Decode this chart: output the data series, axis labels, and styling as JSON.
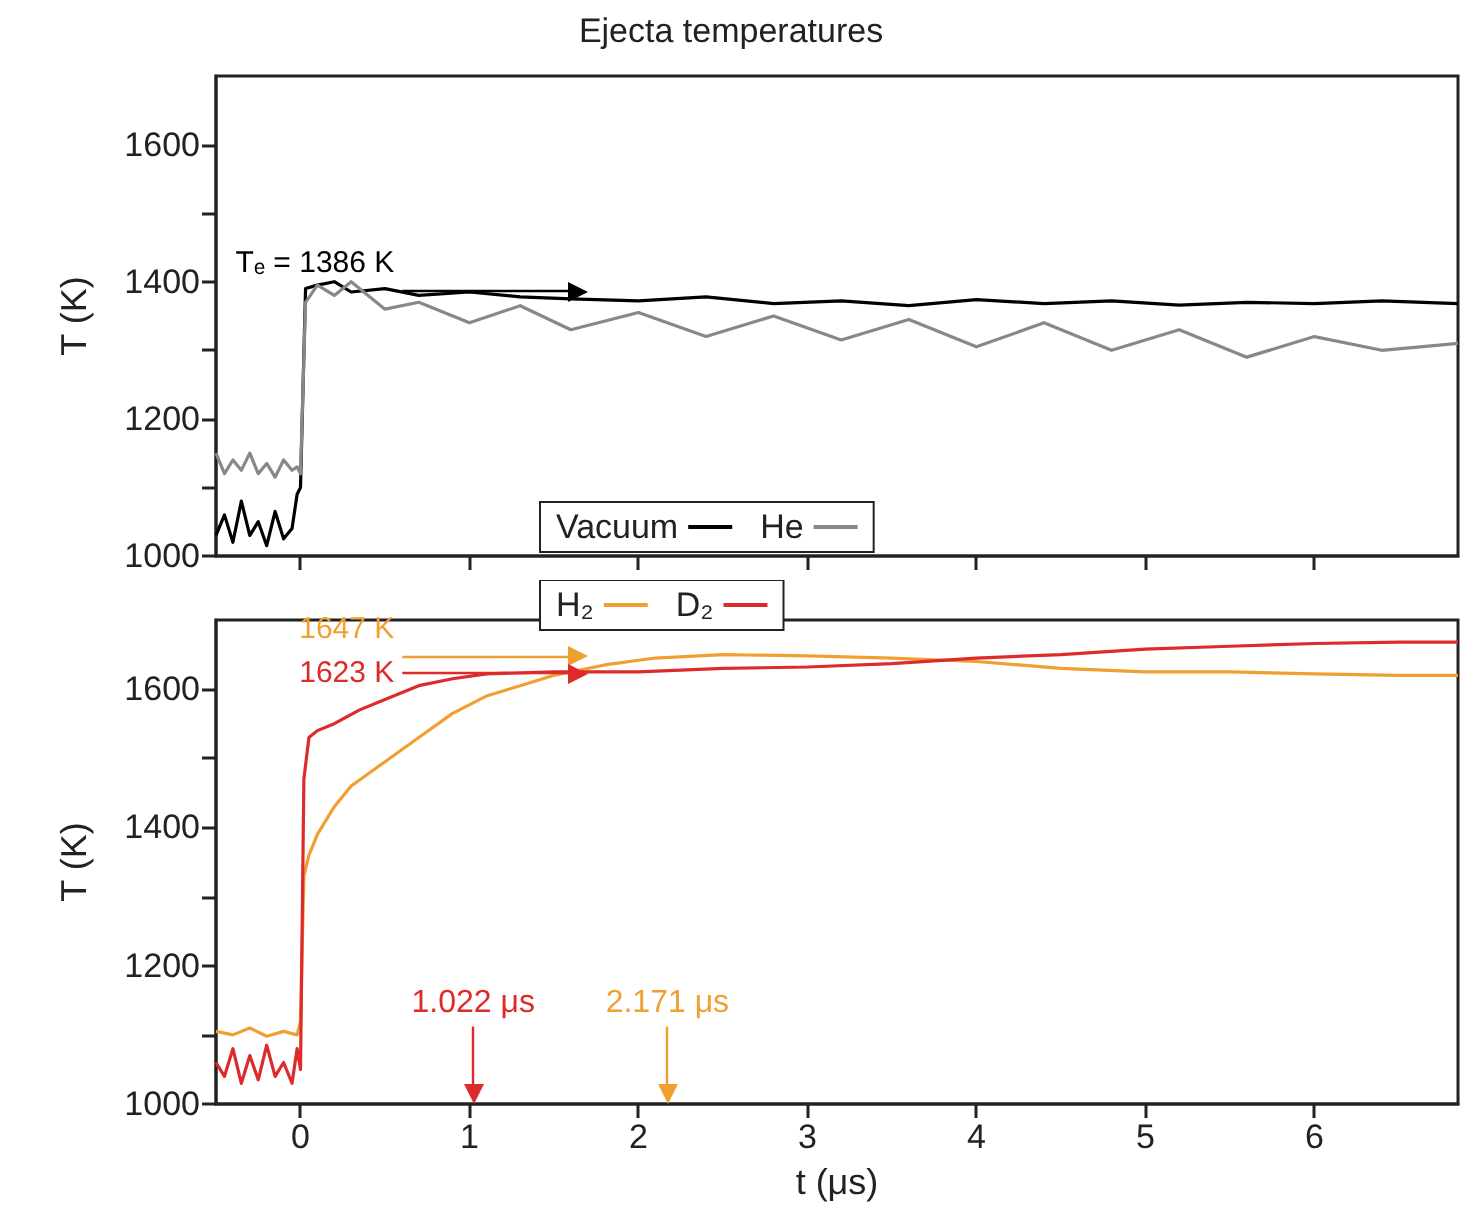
{
  "chart_data": [
    {
      "type": "line",
      "title": "Ejecta temperatures",
      "ylabel": "T (K)",
      "xlim": [
        -0.5,
        6.85
      ],
      "xticks": [
        0,
        1,
        2,
        3,
        4,
        5,
        6
      ],
      "ylim": [
        1000,
        1700
      ],
      "yticks": [
        1000,
        {
          "value": 1100,
          "label": null
        },
        1200,
        {
          "value": 1300,
          "label": null
        },
        1400,
        {
          "value": 1500,
          "label": null
        },
        1600
      ],
      "tick_labels": "y",
      "legend": "bottom",
      "marker": "none",
      "series": [
        {
          "name": "Vacuum",
          "color": "#000000",
          "x": [
            -0.5,
            -0.45,
            -0.4,
            -0.35,
            -0.3,
            -0.25,
            -0.2,
            -0.15,
            -0.1,
            -0.05,
            -0.02,
            0,
            0.03,
            0.1,
            0.2,
            0.3,
            0.5,
            0.7,
            1,
            1.3,
            1.6,
            2,
            2.4,
            2.8,
            3.2,
            3.6,
            4,
            4.4,
            4.8,
            5.2,
            5.6,
            6,
            6.4,
            6.85
          ],
          "values": [
            1030,
            1060,
            1020,
            1080,
            1030,
            1050,
            1015,
            1065,
            1025,
            1040,
            1090,
            1100,
            1390,
            1395,
            1400,
            1385,
            1390,
            1380,
            1385,
            1378,
            1375,
            1372,
            1378,
            1368,
            1372,
            1365,
            1374,
            1368,
            1372,
            1366,
            1370,
            1368,
            1372,
            1368
          ]
        },
        {
          "name": "He",
          "color": "#888888",
          "x": [
            -0.5,
            -0.45,
            -0.4,
            -0.35,
            -0.3,
            -0.25,
            -0.2,
            -0.15,
            -0.1,
            -0.05,
            -0.02,
            0,
            0.03,
            0.1,
            0.2,
            0.3,
            0.5,
            0.7,
            1,
            1.3,
            1.6,
            2,
            2.4,
            2.8,
            3.2,
            3.6,
            4,
            4.4,
            4.8,
            5.2,
            5.6,
            6,
            6.4,
            6.85
          ],
          "values": [
            1150,
            1120,
            1140,
            1125,
            1150,
            1120,
            1135,
            1115,
            1140,
            1125,
            1130,
            1120,
            1370,
            1395,
            1380,
            1400,
            1360,
            1370,
            1340,
            1365,
            1330,
            1355,
            1320,
            1350,
            1315,
            1345,
            1305,
            1340,
            1300,
            1330,
            1290,
            1320,
            1300,
            1310
          ]
        }
      ],
      "ref_lines": [
        {
          "axis": "y",
          "value": 1386,
          "label": "Tₑ = 1386 K",
          "color": "#000000"
        }
      ]
    },
    {
      "type": "line",
      "xlabel": "t (μs)",
      "ylabel": "T (K)",
      "xlim": [
        -0.5,
        6.85
      ],
      "xticks": [
        0,
        1,
        2,
        3,
        4,
        5,
        6
      ],
      "ylim": [
        1000,
        1700
      ],
      "yticks": [
        1000,
        {
          "value": 1100,
          "label": null
        },
        1200,
        {
          "value": 1300,
          "label": null
        },
        1400,
        {
          "value": 1500,
          "label": null
        },
        1600
      ],
      "legend": "top",
      "marker": "none",
      "series": [
        {
          "name": "H₂",
          "color": "#f0a030",
          "x": [
            -0.5,
            -0.4,
            -0.3,
            -0.2,
            -0.1,
            -0.02,
            0,
            0.02,
            0.05,
            0.1,
            0.2,
            0.3,
            0.5,
            0.7,
            0.9,
            1.1,
            1.3,
            1.5,
            1.8,
            2.1,
            2.5,
            3,
            3.5,
            4,
            4.5,
            5,
            5.5,
            6,
            6.5,
            6.85
          ],
          "values": [
            1105,
            1100,
            1110,
            1098,
            1105,
            1100,
            1120,
            1330,
            1360,
            1390,
            1430,
            1460,
            1495,
            1530,
            1565,
            1590,
            1605,
            1620,
            1635,
            1645,
            1650,
            1648,
            1645,
            1640,
            1630,
            1625,
            1625,
            1622,
            1620,
            1620
          ]
        },
        {
          "name": "D₂",
          "color": "#dd2a2a",
          "x": [
            -0.5,
            -0.45,
            -0.4,
            -0.35,
            -0.3,
            -0.25,
            -0.2,
            -0.15,
            -0.1,
            -0.05,
            -0.02,
            0,
            0.02,
            0.05,
            0.1,
            0.2,
            0.35,
            0.5,
            0.7,
            0.9,
            1.1,
            1.5,
            2,
            2.5,
            3,
            3.5,
            4,
            4.5,
            5,
            5.5,
            6,
            6.5,
            6.85
          ],
          "values": [
            1060,
            1040,
            1080,
            1030,
            1070,
            1035,
            1085,
            1040,
            1060,
            1030,
            1080,
            1050,
            1470,
            1530,
            1540,
            1550,
            1570,
            1585,
            1605,
            1615,
            1622,
            1625,
            1625,
            1630,
            1632,
            1637,
            1645,
            1650,
            1658,
            1662,
            1666,
            1668,
            1668
          ]
        }
      ],
      "ref_lines": [
        {
          "axis": "y",
          "value": 1647,
          "label": "1647 K",
          "color": "#f0a030"
        },
        {
          "axis": "y",
          "value": 1623,
          "label": "1623 K",
          "color": "#dd2a2a"
        },
        {
          "axis": "x",
          "value": 1.022,
          "label": "1.022 μs",
          "color": "#dd2a2a"
        },
        {
          "axis": "x",
          "value": 2.171,
          "label": "2.171 μs",
          "color": "#f0a030"
        }
      ]
    }
  ]
}
